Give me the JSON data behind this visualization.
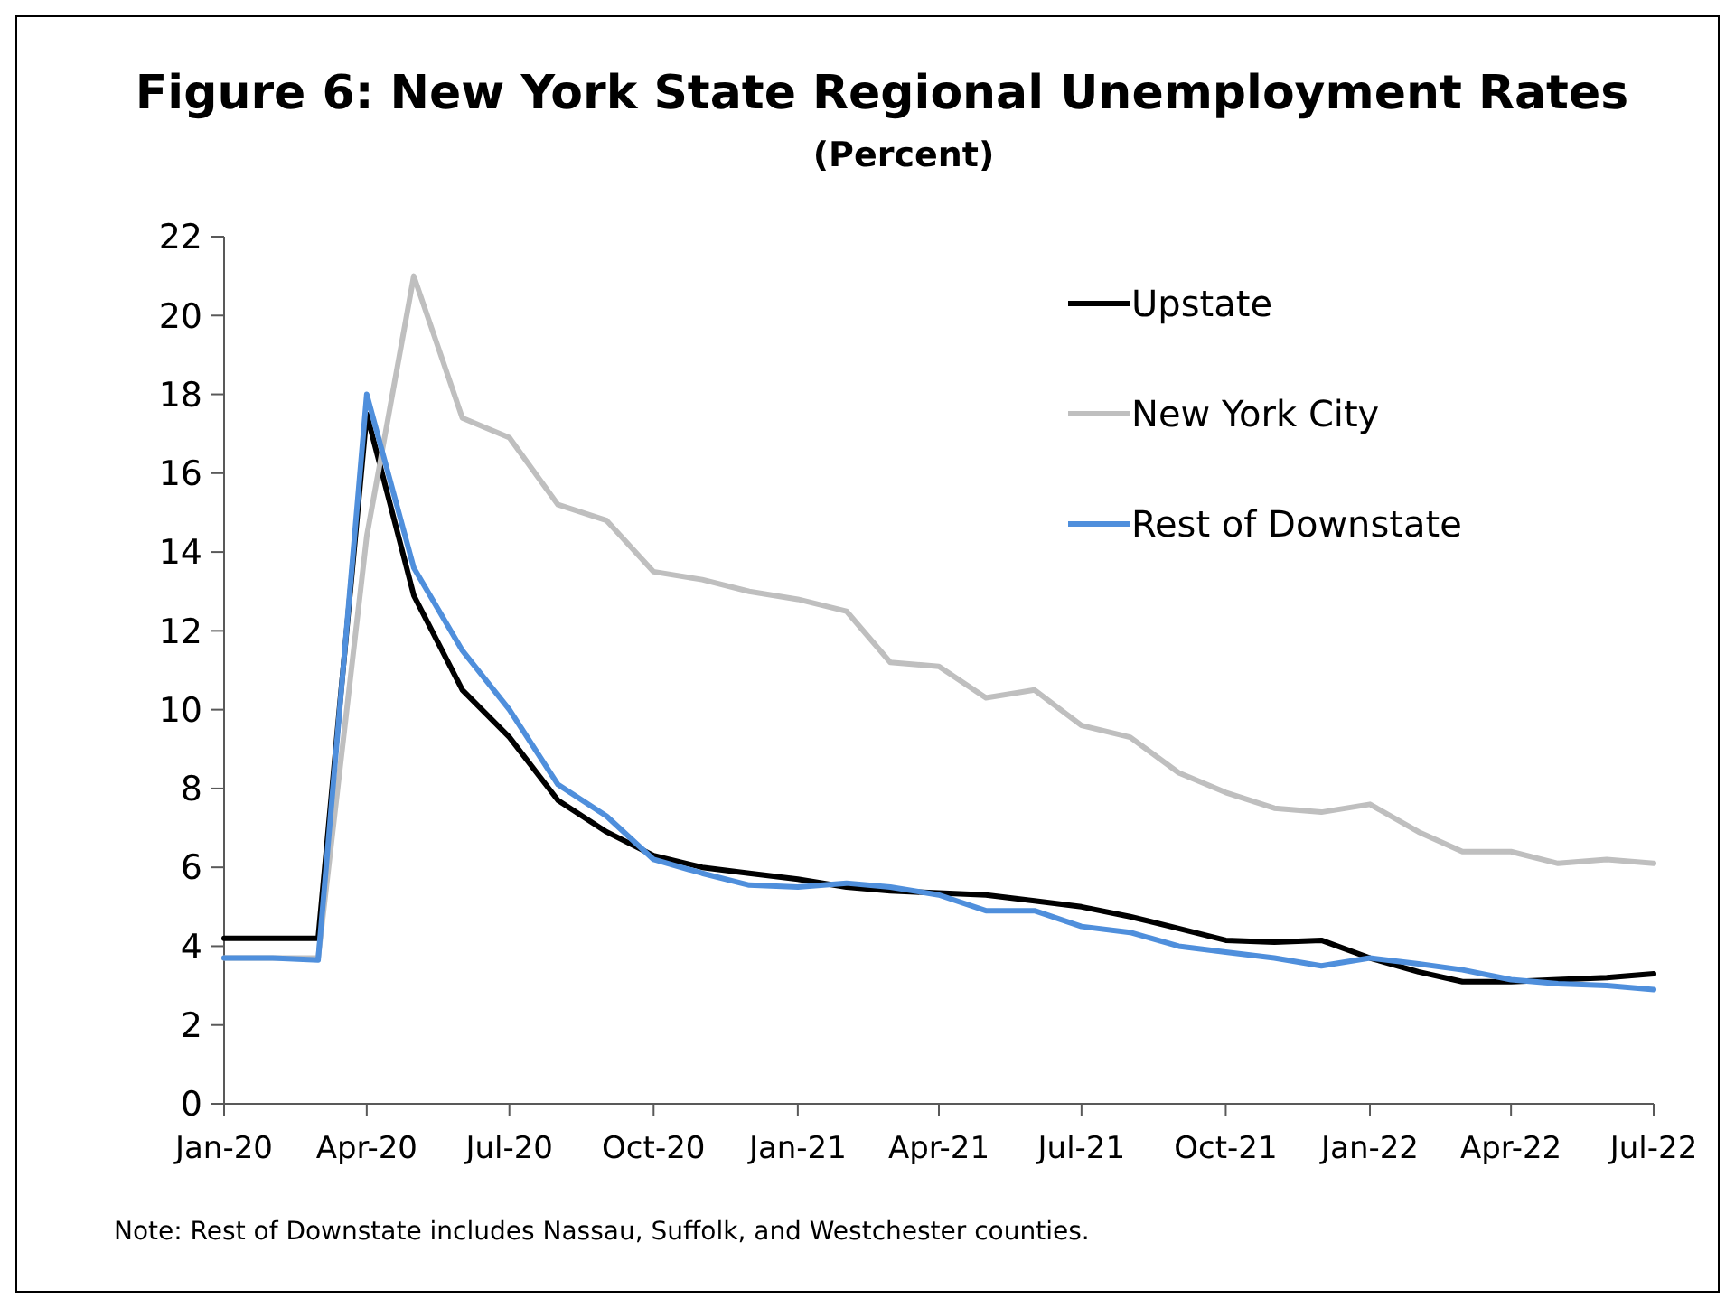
{
  "chart_data": {
    "type": "line",
    "title": "Figure 6: New York State Regional Unemployment Rates",
    "subtitle": "(Percent)",
    "x": [
      "2020-01",
      "2020-02",
      "2020-03",
      "2020-04",
      "2020-05",
      "2020-06",
      "2020-07",
      "2020-08",
      "2020-09",
      "2020-10",
      "2020-11",
      "2020-12",
      "2021-01",
      "2021-02",
      "2021-03",
      "2021-04",
      "2021-05",
      "2021-06",
      "2021-07",
      "2021-08",
      "2021-09",
      "2021-10",
      "2021-11",
      "2021-12",
      "2022-01",
      "2022-02",
      "2022-03",
      "2022-04",
      "2022-05",
      "2022-06",
      "2022-07"
    ],
    "series": [
      {
        "name": "Upstate",
        "color": "#000000",
        "values": [
          4.2,
          4.2,
          4.2,
          17.5,
          12.9,
          10.5,
          9.3,
          7.7,
          6.9,
          6.3,
          6.0,
          5.85,
          5.7,
          5.5,
          5.4,
          5.35,
          5.3,
          5.15,
          5.0,
          4.75,
          4.45,
          4.15,
          4.1,
          4.15,
          3.7,
          3.35,
          3.1,
          3.1,
          3.15,
          3.2,
          3.3
        ]
      },
      {
        "name": "New York City",
        "color": "#bfbfbf",
        "values": [
          3.7,
          3.7,
          3.7,
          14.4,
          21.0,
          17.4,
          16.9,
          15.2,
          14.8,
          13.5,
          13.3,
          13.0,
          12.8,
          12.5,
          11.2,
          11.1,
          10.3,
          10.5,
          9.6,
          9.3,
          8.4,
          7.9,
          7.5,
          7.4,
          7.6,
          6.9,
          6.4,
          6.4,
          6.1,
          6.2,
          6.1
        ]
      },
      {
        "name": "Rest of Downstate",
        "color": "#4f8fdc",
        "values": [
          3.7,
          3.7,
          3.65,
          18.0,
          13.6,
          11.5,
          10.0,
          8.1,
          7.3,
          6.2,
          5.85,
          5.55,
          5.5,
          5.6,
          5.5,
          5.3,
          4.9,
          4.9,
          4.5,
          4.35,
          4.0,
          3.85,
          3.7,
          3.5,
          3.7,
          3.55,
          3.4,
          3.15,
          3.05,
          3.0,
          2.9
        ]
      }
    ],
    "xlim": [
      "2020-01",
      "2022-07"
    ],
    "xticks": [
      {
        "value": "2020-01",
        "label": "Jan-20"
      },
      {
        "value": "2020-04",
        "label": "Apr-20"
      },
      {
        "value": "2020-07",
        "label": "Jul-20"
      },
      {
        "value": "2020-10",
        "label": "Oct-20"
      },
      {
        "value": "2021-01",
        "label": "Jan-21"
      },
      {
        "value": "2021-04",
        "label": "Apr-21"
      },
      {
        "value": "2021-07",
        "label": "Jul-21"
      },
      {
        "value": "2021-10",
        "label": "Oct-21"
      },
      {
        "value": "2022-01",
        "label": "Jan-22"
      },
      {
        "value": "2022-04",
        "label": "Apr-22"
      },
      {
        "value": "2022-07",
        "label": "Jul-22"
      }
    ],
    "ylim": [
      0,
      22
    ],
    "yticks": [
      0,
      2,
      4,
      6,
      8,
      10,
      12,
      14,
      16,
      18,
      20,
      22
    ],
    "grid": false,
    "legend": "top right",
    "marker": "none",
    "line_style": "solid",
    "annotations": [
      "Note: Rest of Downstate includes Nassau, Suffolk, and Westchester counties."
    ]
  }
}
